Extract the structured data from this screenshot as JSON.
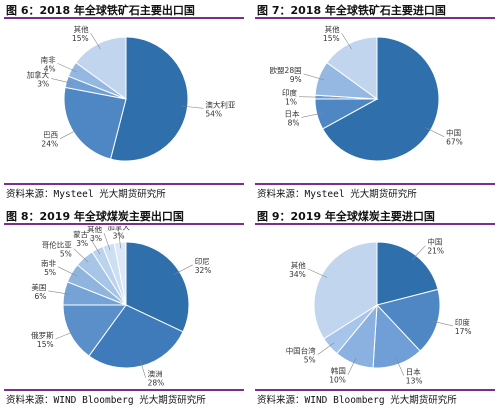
{
  "chart_data": [
    {
      "type": "pie",
      "title": "图 6：2018 年全球铁矿石主要出口国",
      "source": "资料来源：Mysteel 光大期货研究所",
      "slices": [
        {
          "name": "澳大利亚",
          "value": 54,
          "label": "54%",
          "color": "#2e6fac"
        },
        {
          "name": "巴西",
          "value": 24,
          "label": "24%",
          "color": "#4e87c4"
        },
        {
          "name": "加拿大",
          "value": 3,
          "label": "3%",
          "color": "#6f9fd6"
        },
        {
          "name": "南非",
          "value": 4,
          "label": "4%",
          "color": "#95b8e3"
        },
        {
          "name": "其他",
          "value": 15,
          "label": "15%",
          "color": "#c2d5ef"
        }
      ]
    },
    {
      "type": "pie",
      "title": "图 7：2018 年全球铁矿石主要进口国",
      "source": "资料来源：Mysteel 光大期货研究所",
      "slices": [
        {
          "name": "中国",
          "value": 67,
          "label": "67%",
          "color": "#2e6fac"
        },
        {
          "name": "日本",
          "value": 8,
          "label": "8%",
          "color": "#4e87c4"
        },
        {
          "name": "印度",
          "value": 1,
          "label": "1%",
          "color": "#6f9fd6"
        },
        {
          "name": "欧盟28国",
          "value": 9,
          "label": "9%",
          "color": "#95b8e3"
        },
        {
          "name": "其他",
          "value": 15,
          "label": "15%",
          "color": "#c2d5ef"
        }
      ]
    },
    {
      "type": "pie",
      "title": "图 8：2019 年全球煤炭主要出口国",
      "source": "资料来源：WIND Bloomberg 光大期货研究所",
      "slices": [
        {
          "name": "印尼",
          "value": 32,
          "label": "32%",
          "color": "#2e6fac"
        },
        {
          "name": "澳洲",
          "value": 28,
          "label": "28%",
          "color": "#3f7bba"
        },
        {
          "name": "俄罗斯",
          "value": 15,
          "label": "15%",
          "color": "#5a8fca"
        },
        {
          "name": "美国",
          "value": 6,
          "label": "6%",
          "color": "#76a3d6"
        },
        {
          "name": "南非",
          "value": 5,
          "label": "5%",
          "color": "#8fb5df"
        },
        {
          "name": "哥伦比亚",
          "value": 5,
          "label": "5%",
          "color": "#a7c5e7"
        },
        {
          "name": "蒙古",
          "value": 3,
          "label": "3%",
          "color": "#bcd3ee"
        },
        {
          "name": "其他",
          "value": 3,
          "label": "3%",
          "color": "#cddff3"
        },
        {
          "name": "加拿大",
          "value": 3,
          "label": "3%",
          "color": "#dce8f7"
        }
      ]
    },
    {
      "type": "pie",
      "title": "图 9：2019 年全球煤炭主要进口国",
      "source": "资料来源：WIND Bloomberg 光大期货研究所",
      "slices": [
        {
          "name": "中国",
          "value": 21,
          "label": "21%",
          "color": "#2e6fac"
        },
        {
          "name": "印度",
          "value": 17,
          "label": "17%",
          "color": "#4e87c4"
        },
        {
          "name": "日本",
          "value": 13,
          "label": "13%",
          "color": "#6f9fd6"
        },
        {
          "name": "韩国",
          "value": 10,
          "label": "10%",
          "color": "#8ab1e0"
        },
        {
          "name": "中国台湾",
          "value": 5,
          "label": "5%",
          "color": "#a7c5ea"
        },
        {
          "name": "其他",
          "value": 34,
          "label": "34%",
          "color": "#c2d5ef"
        }
      ]
    }
  ]
}
